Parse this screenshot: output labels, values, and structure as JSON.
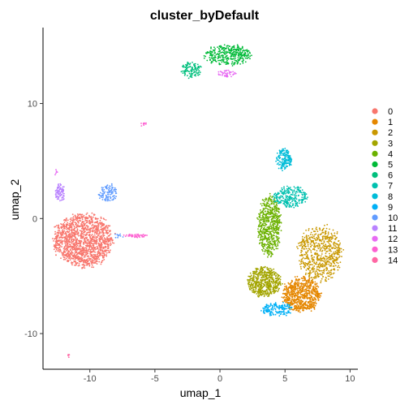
{
  "chart_data": {
    "type": "scatter",
    "title": "cluster_byDefault",
    "xlabel": "umap_1",
    "ylabel": "umap_2",
    "xlim": [
      -13.6,
      10.6
    ],
    "ylim": [
      -13.1,
      16.6
    ],
    "xticks": [
      -10,
      -5,
      0,
      5,
      10
    ],
    "yticks": [
      -10,
      0,
      10
    ],
    "xtick_labels": [
      "-10",
      "-5",
      "0",
      "5",
      "10"
    ],
    "ytick_labels": [
      "-10",
      "0",
      "10"
    ],
    "grid": false,
    "legend": "right",
    "series": [
      {
        "name": "0",
        "color": "#F8766D",
        "clusters": [
          {
            "cx": -10.5,
            "cy": -1.9,
            "rx": 2.3,
            "ry": 2.3,
            "n": 1500
          }
        ]
      },
      {
        "name": "1",
        "color": "#E58700",
        "clusters": [
          {
            "cx": 6.3,
            "cy": -6.6,
            "rx": 1.5,
            "ry": 1.5,
            "n": 700
          }
        ]
      },
      {
        "name": "2",
        "color": "#C99800",
        "clusters": [
          {
            "cx": 7.7,
            "cy": -3.0,
            "rx": 1.7,
            "ry": 2.4,
            "n": 650
          }
        ]
      },
      {
        "name": "3",
        "color": "#A3A500",
        "clusters": [
          {
            "cx": 3.4,
            "cy": -5.5,
            "rx": 1.3,
            "ry": 1.3,
            "n": 550
          }
        ]
      },
      {
        "name": "4",
        "color": "#6BB100",
        "clusters": [
          {
            "cx": 3.8,
            "cy": -0.6,
            "rx": 0.9,
            "ry": 2.6,
            "n": 600
          }
        ]
      },
      {
        "name": "5",
        "color": "#00BA38",
        "clusters": [
          {
            "cx": 0.6,
            "cy": 14.2,
            "rx": 1.8,
            "ry": 0.9,
            "n": 350
          }
        ]
      },
      {
        "name": "6",
        "color": "#00BF7D",
        "clusters": [
          {
            "cx": -2.2,
            "cy": 12.9,
            "rx": 0.8,
            "ry": 0.7,
            "n": 110
          }
        ]
      },
      {
        "name": "7",
        "color": "#00C0AF",
        "clusters": [
          {
            "cx": 5.4,
            "cy": 1.9,
            "rx": 1.3,
            "ry": 0.9,
            "n": 260
          }
        ]
      },
      {
        "name": "8",
        "color": "#00BCD8",
        "clusters": [
          {
            "cx": 4.9,
            "cy": 5.1,
            "rx": 0.6,
            "ry": 1.0,
            "n": 170
          }
        ]
      },
      {
        "name": "9",
        "color": "#00B0F6",
        "clusters": [
          {
            "cx": 4.4,
            "cy": -7.9,
            "rx": 1.2,
            "ry": 0.6,
            "n": 170
          }
        ]
      },
      {
        "name": "10",
        "color": "#619CFF",
        "clusters": [
          {
            "cx": -8.6,
            "cy": 2.2,
            "rx": 0.7,
            "ry": 0.8,
            "n": 110
          },
          {
            "cx": -7.8,
            "cy": -1.6,
            "rx": 0.3,
            "ry": 0.2,
            "n": 10
          }
        ]
      },
      {
        "name": "11",
        "color": "#B983FF",
        "clusters": [
          {
            "cx": -12.3,
            "cy": 2.2,
            "rx": 0.4,
            "ry": 0.8,
            "n": 90
          }
        ]
      },
      {
        "name": "12",
        "color": "#E76BF3",
        "clusters": [
          {
            "cx": 0.5,
            "cy": 12.6,
            "rx": 0.8,
            "ry": 0.3,
            "n": 45
          },
          {
            "cx": -12.6,
            "cy": 4.1,
            "rx": 0.1,
            "ry": 0.2,
            "n": 6
          }
        ]
      },
      {
        "name": "13",
        "color": "#FD61D1",
        "clusters": [
          {
            "cx": -6.5,
            "cy": -1.5,
            "rx": 1.0,
            "ry": 0.15,
            "n": 45
          },
          {
            "cx": -5.9,
            "cy": 8.2,
            "rx": 0.2,
            "ry": 0.15,
            "n": 10
          }
        ]
      },
      {
        "name": "14",
        "color": "#FF67A4",
        "clusters": [
          {
            "cx": -11.6,
            "cy": -11.9,
            "rx": 0.1,
            "ry": 0.1,
            "n": 5
          }
        ]
      }
    ]
  }
}
